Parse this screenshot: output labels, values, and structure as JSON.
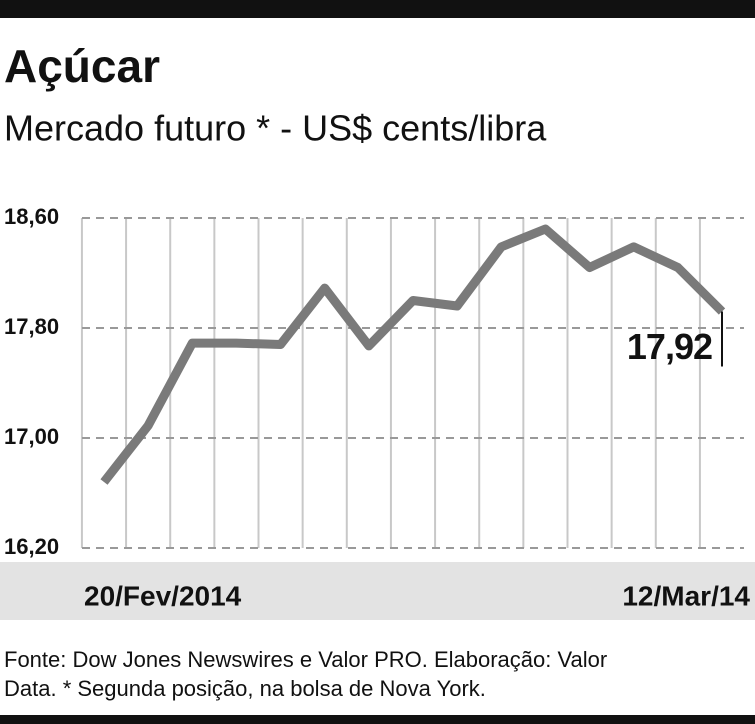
{
  "chart_data": {
    "type": "line",
    "title": "Açúcar",
    "subtitle": "Mercado futuro * - US$ cents/libra",
    "categories": [
      "20/Fev/2014",
      null,
      null,
      null,
      null,
      null,
      null,
      null,
      null,
      null,
      null,
      null,
      null,
      null,
      "12/Mar/14"
    ],
    "series": [
      {
        "color": "#7a7a7a",
        "values": [
          16.68,
          17.09,
          17.69,
          17.69,
          17.68,
          18.09,
          17.67,
          18.0,
          17.96,
          18.39,
          18.52,
          18.24,
          18.39,
          18.24,
          17.92
        ],
        "value_labels": [
          null,
          null,
          null,
          null,
          null,
          null,
          null,
          null,
          null,
          null,
          null,
          null,
          null,
          null,
          "17,92"
        ]
      }
    ],
    "ylim": [
      16.2,
      18.6
    ],
    "yticks": [
      {
        "value": 16.2,
        "label": "16,20"
      },
      {
        "value": 17.0,
        "label": "17,00"
      },
      {
        "value": 17.8,
        "label": "17,80"
      },
      {
        "value": 18.6,
        "label": "18,60"
      }
    ],
    "grid": true,
    "source": [
      "Fonte: Dow Jones Newswires e Valor PRO. Elaboração: Valor",
      "Data. * Segunda posição, na bolsa de Nova York."
    ]
  }
}
